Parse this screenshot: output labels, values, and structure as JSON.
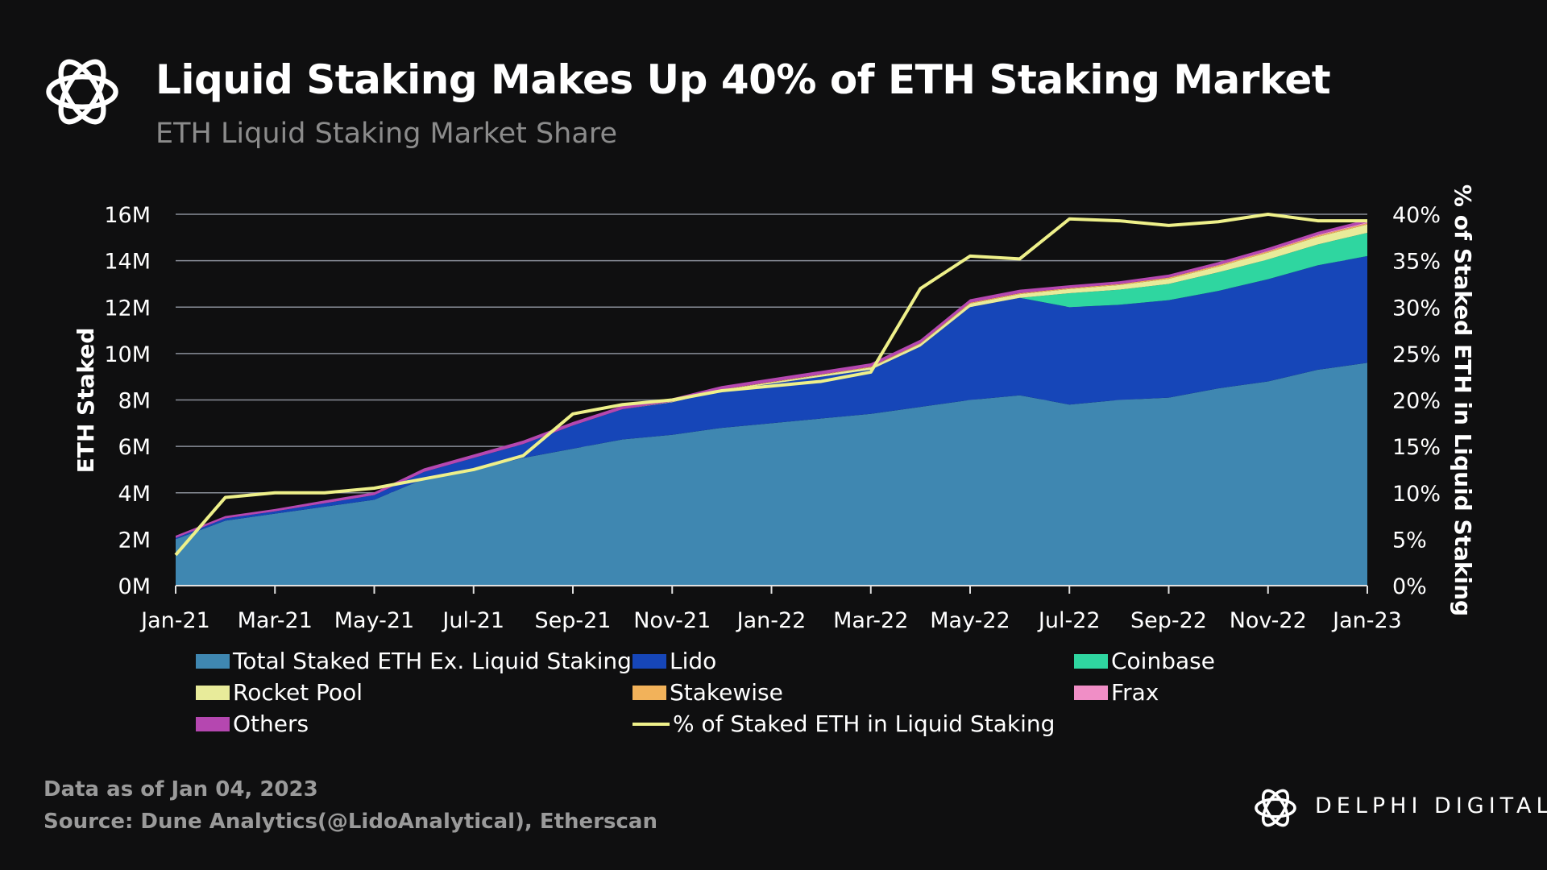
{
  "header": {
    "title": "Liquid Staking Makes Up 40% of ETH Staking Market",
    "subtitle": "ETH Liquid Staking Market Share"
  },
  "footer": {
    "data_as_of": "Data as of Jan 04, 2023",
    "source": "Source: Dune Analytics(@LidoAnalytical), Etherscan",
    "brand": "DELPHI DIGITAL"
  },
  "chart_data": {
    "type": "area",
    "stacked": true,
    "title": "Liquid Staking Makes Up 40% of ETH Staking Market",
    "subtitle": "ETH Liquid Staking Market Share",
    "ylabel": "ETH Staked",
    "y2label": "% of Staked ETH in Liquid Staking",
    "ylim": [
      0,
      16
    ],
    "y2lim": [
      0,
      40
    ],
    "yticks": [
      "0M",
      "2M",
      "4M",
      "6M",
      "8M",
      "10M",
      "12M",
      "14M",
      "16M"
    ],
    "y2ticks": [
      "0%",
      "5%",
      "10%",
      "15%",
      "20%",
      "25%",
      "30%",
      "35%",
      "40%"
    ],
    "xticks": [
      "Jan-21",
      "Mar-21",
      "May-21",
      "Jul-21",
      "Sep-21",
      "Nov-21",
      "Jan-22",
      "Mar-22",
      "May-22",
      "Jul-22",
      "Sep-22",
      "Nov-22",
      "Jan-23"
    ],
    "grid": true,
    "legend_position": "bottom",
    "x": [
      "2021-01",
      "2021-02",
      "2021-03",
      "2021-04",
      "2021-05",
      "2021-06",
      "2021-07",
      "2021-08",
      "2021-09",
      "2021-10",
      "2021-11",
      "2021-12",
      "2022-01",
      "2022-02",
      "2022-03",
      "2022-04",
      "2022-05",
      "2022-06",
      "2022-07",
      "2022-08",
      "2022-09",
      "2022-10",
      "2022-11",
      "2022-12",
      "2023-01"
    ],
    "series": [
      {
        "name": "Total Staked ETH Ex. Liquid Staking",
        "color": "#3f87b1",
        "values": [
          2.0,
          2.8,
          3.1,
          3.4,
          3.7,
          4.6,
          5.0,
          5.5,
          5.9,
          6.3,
          6.5,
          6.8,
          7.0,
          7.2,
          7.4,
          7.7,
          8.0,
          8.2,
          7.8,
          8.0,
          8.1,
          8.5,
          8.8,
          9.3,
          9.6
        ]
      },
      {
        "name": "Lido",
        "color": "#1646b8",
        "values": [
          0.05,
          0.1,
          0.1,
          0.15,
          0.2,
          0.3,
          0.5,
          0.6,
          1.0,
          1.3,
          1.4,
          1.6,
          1.7,
          1.8,
          1.9,
          2.6,
          4.0,
          4.2,
          4.2,
          4.1,
          4.2,
          4.2,
          4.4,
          4.5,
          4.6
        ]
      },
      {
        "name": "Coinbase",
        "color": "#2fd6a0",
        "values": [
          0,
          0,
          0,
          0,
          0,
          0,
          0,
          0,
          0,
          0,
          0,
          0,
          0,
          0,
          0,
          0,
          0,
          0,
          0.6,
          0.65,
          0.7,
          0.8,
          0.85,
          0.9,
          1.0
        ]
      },
      {
        "name": "Rocket Pool",
        "color": "#e8eb9a",
        "values": [
          0,
          0,
          0,
          0,
          0,
          0,
          0,
          0,
          0,
          0,
          0.02,
          0.04,
          0.06,
          0.08,
          0.1,
          0.12,
          0.15,
          0.16,
          0.18,
          0.2,
          0.22,
          0.25,
          0.3,
          0.33,
          0.36
        ]
      },
      {
        "name": "Stakewise",
        "color": "#f2b25a",
        "values": [
          0,
          0,
          0,
          0,
          0,
          0,
          0,
          0,
          0,
          0,
          0,
          0.01,
          0.02,
          0.02,
          0.03,
          0.03,
          0.04,
          0.04,
          0.04,
          0.04,
          0.05,
          0.05,
          0.05,
          0.05,
          0.05
        ]
      },
      {
        "name": "Frax",
        "color": "#f08ec6",
        "values": [
          0,
          0,
          0,
          0,
          0,
          0,
          0,
          0,
          0,
          0,
          0,
          0,
          0,
          0,
          0,
          0,
          0,
          0,
          0,
          0,
          0.01,
          0.02,
          0.03,
          0.04,
          0.05
        ]
      },
      {
        "name": "Others",
        "color": "#b547b0",
        "values": [
          0.1,
          0.1,
          0.1,
          0.12,
          0.12,
          0.15,
          0.15,
          0.15,
          0.15,
          0.15,
          0.15,
          0.15,
          0.15,
          0.15,
          0.15,
          0.15,
          0.15,
          0.15,
          0.12,
          0.12,
          0.12,
          0.12,
          0.12,
          0.12,
          0.12
        ]
      }
    ],
    "line": {
      "name": "% of Staked ETH in Liquid Staking",
      "color": "#eef08a",
      "axis": "right",
      "values": [
        3.3,
        9.5,
        10,
        10,
        10.5,
        11.5,
        12.5,
        14,
        18.5,
        19.5,
        20,
        21,
        21.5,
        22,
        23,
        32,
        35.5,
        35.2,
        39.5,
        39.3,
        38.8,
        39.2,
        40,
        39.3,
        39.3
      ]
    }
  }
}
